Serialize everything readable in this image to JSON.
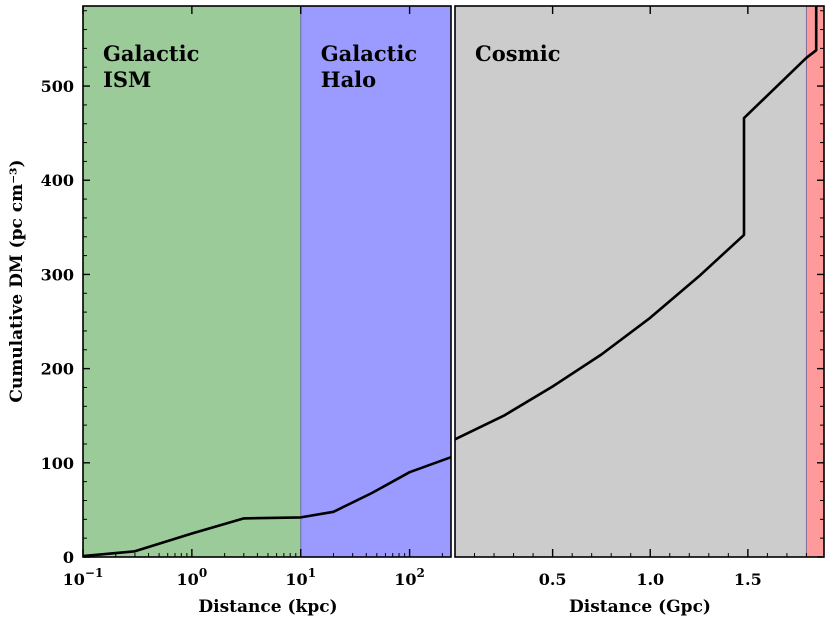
{
  "chart_data": [
    {
      "type": "line",
      "panel": "left",
      "xscale": "log",
      "xlabel": "Distance (kpc)",
      "ylabel": "Cumulative DM (pc cm⁻³)",
      "xlim": [
        0.1,
        240
      ],
      "ylim": [
        0,
        585
      ],
      "xtick_base": "10",
      "xticks": [
        {
          "value": 0.1,
          "exp": "−1"
        },
        {
          "value": 1,
          "exp": "0"
        },
        {
          "value": 10,
          "exp": "1"
        },
        {
          "value": 100,
          "exp": "2"
        }
      ],
      "yticks": [
        "0",
        "100",
        "200",
        "300",
        "400",
        "500"
      ],
      "regions": [
        {
          "label_lines": [
            "Galactic",
            "ISM"
          ],
          "x0": 0.1,
          "x1": 10,
          "color": "#9acb98"
        },
        {
          "label_lines": [
            "Galactic",
            "Halo"
          ],
          "x0": 10,
          "x1": 240,
          "color": "#9a9aff"
        }
      ],
      "series": [
        {
          "x": [
            0.1,
            0.3,
            1,
            3,
            10,
            20,
            45,
            100,
            240
          ],
          "y": [
            1,
            6,
            25,
            41,
            42,
            48,
            68,
            90,
            106
          ]
        }
      ]
    },
    {
      "type": "line",
      "panel": "right",
      "xlabel": "Distance (Gpc)",
      "xlim": [
        0.0,
        1.89
      ],
      "ylim": [
        0,
        585
      ],
      "xticks": [
        "0.5",
        "1.0",
        "1.5"
      ],
      "regions": [
        {
          "label_lines": [
            "Cosmic"
          ],
          "x0": 0.0,
          "x1": 1.8,
          "color": "#cccccc"
        },
        {
          "label_lines": [],
          "x0": 1.8,
          "x1": 1.89,
          "color": "#ff9a9a"
        }
      ],
      "series": [
        {
          "x": [
            0.0,
            0.25,
            0.5,
            0.75,
            1.0,
            1.25,
            1.48,
            1.48,
            1.8,
            1.85,
            1.85
          ],
          "y": [
            125,
            150,
            181,
            215,
            254,
            298,
            342,
            466,
            530,
            538,
            585
          ]
        }
      ]
    }
  ]
}
